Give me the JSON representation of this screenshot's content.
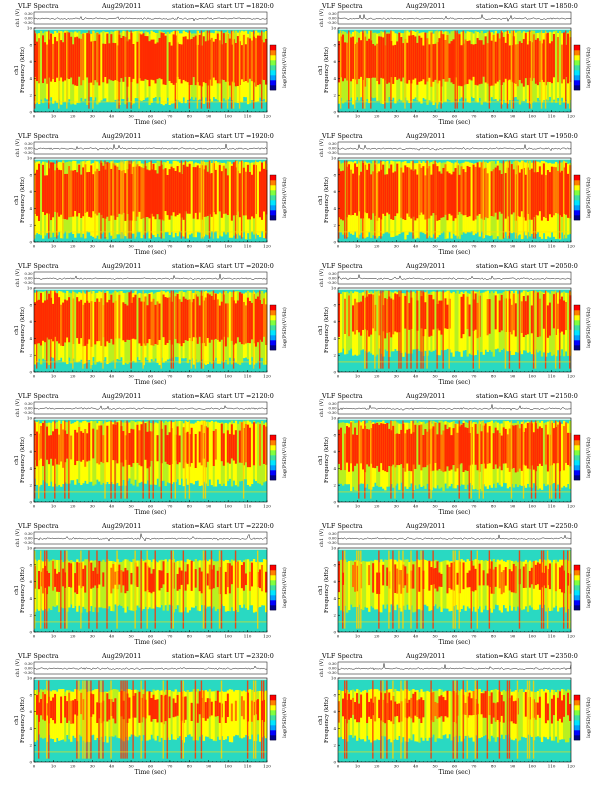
{
  "figure_title": "VLF Spectra",
  "date": "Aug29/2011",
  "station": "station=KAG",
  "start_prefix": "start  UT",
  "channel_label": "ch1",
  "waveform_ylabel": "ch1 (V)",
  "waveform_ticks": [
    "0.30",
    "0.00",
    "-0.30"
  ],
  "freq_ylabel": "Frequency (kHz)",
  "colorbar_label": "log(PSD)(V²/Hz)",
  "time_xlabel": "Time (sec)",
  "time_ticks": [
    "0",
    "10",
    "20",
    "30",
    "40",
    "50",
    "60",
    "70",
    "80",
    "90",
    "100",
    "110",
    "120"
  ],
  "freq_ticks": [
    "0",
    "2",
    "4",
    "6",
    "8",
    "10"
  ],
  "colors": {
    "colormap": [
      "#00008b",
      "#0000ff",
      "#00a0ff",
      "#00e5ff",
      "#40e0a0",
      "#80ff40",
      "#ffff00",
      "#ff8000",
      "#ff0000"
    ],
    "accent_red": "#ff2a00",
    "accent_yellow": "#ffff00",
    "accent_cyan": "#29d9c2"
  },
  "chart_data": [
    {
      "type": "heatmap",
      "start_ut": "=1820:0",
      "x_range": [
        0,
        120
      ],
      "y_range": [
        0,
        10
      ],
      "emission_band_khz": [
        3,
        9.5
      ],
      "intensity": "high"
    },
    {
      "type": "heatmap",
      "start_ut": "=1850:0",
      "x_range": [
        0,
        120
      ],
      "y_range": [
        0,
        10
      ],
      "emission_band_khz": [
        3,
        9.5
      ],
      "intensity": "high"
    },
    {
      "type": "heatmap",
      "start_ut": "=1920:0",
      "x_range": [
        0,
        120
      ],
      "y_range": [
        0,
        10
      ],
      "emission_band_khz": [
        2.5,
        9.5
      ],
      "intensity": "high"
    },
    {
      "type": "heatmap",
      "start_ut": "=1950:0",
      "x_range": [
        0,
        120
      ],
      "y_range": [
        0,
        10
      ],
      "emission_band_khz": [
        2.5,
        9.5
      ],
      "intensity": "high"
    },
    {
      "type": "heatmap",
      "start_ut": "=2020:0",
      "x_range": [
        0,
        120
      ],
      "y_range": [
        0,
        10
      ],
      "emission_band_khz": [
        3,
        9.5
      ],
      "intensity": "high"
    },
    {
      "type": "heatmap",
      "start_ut": "=2050:0",
      "x_range": [
        0,
        120
      ],
      "y_range": [
        0,
        10
      ],
      "emission_band_khz": [
        4,
        9.5
      ],
      "intensity": "medium"
    },
    {
      "type": "heatmap",
      "start_ut": "=2120:0",
      "x_range": [
        0,
        120
      ],
      "y_range": [
        0,
        10
      ],
      "emission_band_khz": [
        4,
        9.5
      ],
      "intensity": "medium"
    },
    {
      "type": "heatmap",
      "start_ut": "=2150:0",
      "x_range": [
        0,
        120
      ],
      "y_range": [
        0,
        10
      ],
      "emission_band_khz": [
        3.5,
        9.5
      ],
      "intensity": "high"
    },
    {
      "type": "heatmap",
      "start_ut": "=2220:0",
      "x_range": [
        0,
        120
      ],
      "y_range": [
        0,
        10
      ],
      "emission_band_khz": [
        4.5,
        8.5
      ],
      "intensity": "medium"
    },
    {
      "type": "heatmap",
      "start_ut": "=2250:0",
      "x_range": [
        0,
        120
      ],
      "y_range": [
        0,
        10
      ],
      "emission_band_khz": [
        4.5,
        8.5
      ],
      "intensity": "medium"
    },
    {
      "type": "heatmap",
      "start_ut": "=2320:0",
      "x_range": [
        0,
        120
      ],
      "y_range": [
        0,
        10
      ],
      "emission_band_khz": [
        4.5,
        8.5
      ],
      "intensity": "medium"
    },
    {
      "type": "heatmap",
      "start_ut": "=2350:0",
      "x_range": [
        0,
        120
      ],
      "y_range": [
        0,
        10
      ],
      "emission_band_khz": [
        4.5,
        8.5
      ],
      "intensity": "medium"
    }
  ]
}
